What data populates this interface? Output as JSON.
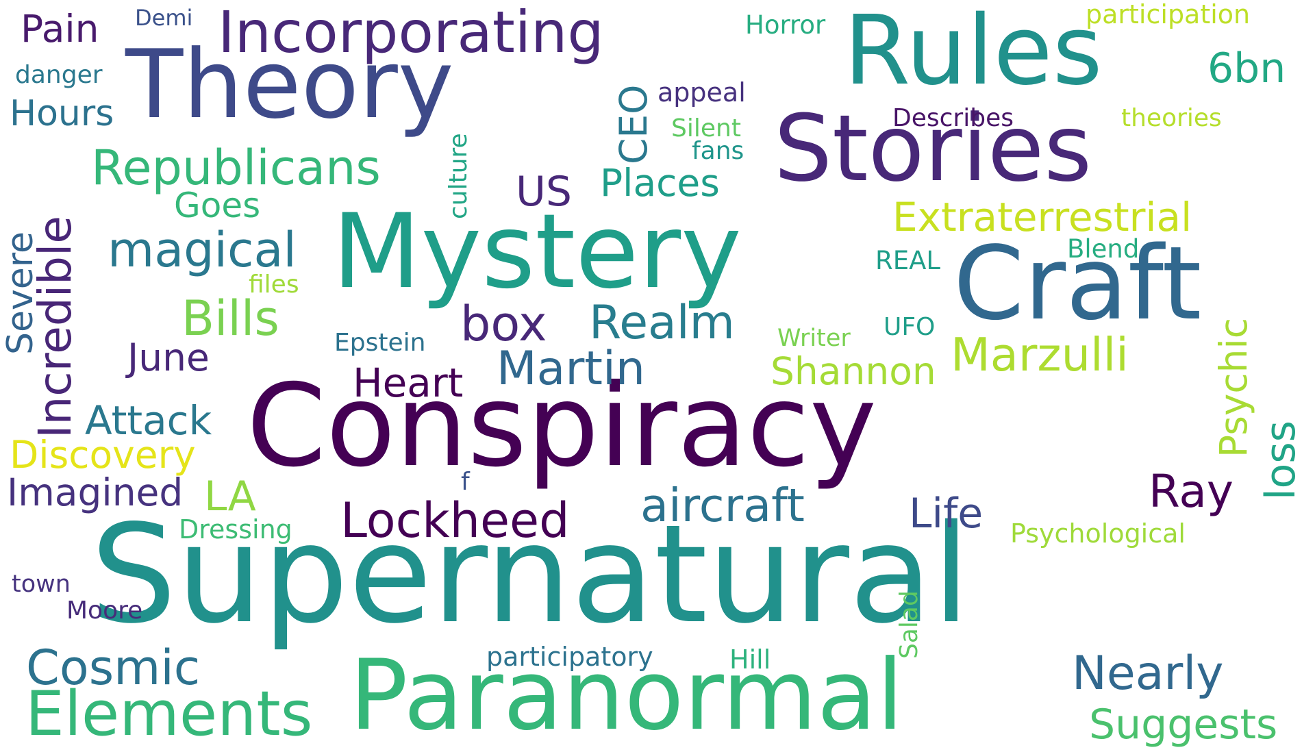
{
  "words": {
    "supernatural": {
      "text": "Supernatural",
      "color": "#21918c"
    },
    "conspiracy": {
      "text": "Conspiracy",
      "color": "#440154"
    },
    "paranormal": {
      "text": "Paranormal",
      "color": "#35b779"
    },
    "mystery": {
      "text": "Mystery",
      "color": "#1f9e89"
    },
    "theory": {
      "text": "Theory",
      "color": "#3e4a89"
    },
    "rules": {
      "text": "Rules",
      "color": "#21918c"
    },
    "stories": {
      "text": "Stories",
      "color": "#482878"
    },
    "craft": {
      "text": "Craft",
      "color": "#31688e"
    },
    "incorporating": {
      "text": "Incorporating",
      "color": "#482878"
    },
    "elements": {
      "text": "Elements",
      "color": "#35b779"
    },
    "republicans": {
      "text": "Republicans",
      "color": "#35b779"
    },
    "extraterrestrial": {
      "text": "Extraterrestrial",
      "color": "#c8e020"
    },
    "marzulli": {
      "text": "Marzulli",
      "color": "#addc30"
    },
    "martin": {
      "text": "Martin",
      "color": "#31688e"
    },
    "cosmic": {
      "text": "Cosmic",
      "color": "#2c728e"
    },
    "lockheed": {
      "text": "Lockheed",
      "color": "#440154"
    },
    "aircraft": {
      "text": "aircraft",
      "color": "#2c728e"
    },
    "nearly": {
      "text": "Nearly",
      "color": "#31688e"
    },
    "suggests": {
      "text": "Suggests",
      "color": "#4ac16d"
    },
    "realm": {
      "text": "Realm",
      "color": "#287d8e"
    },
    "magical": {
      "text": "magical",
      "color": "#2a788e"
    },
    "bills": {
      "text": "Bills",
      "color": "#7ad151"
    },
    "box": {
      "text": "box",
      "color": "#482878"
    },
    "heart": {
      "text": "Heart",
      "color": "#440154"
    },
    "shannon": {
      "text": "Shannon",
      "color": "#a5db36"
    },
    "attack": {
      "text": "Attack",
      "color": "#2a788e"
    },
    "discovery": {
      "text": "Discovery",
      "color": "#e5e419"
    },
    "imagined": {
      "text": "Imagined",
      "color": "#46327e"
    },
    "ray": {
      "text": "Ray",
      "color": "#440154"
    },
    "life": {
      "text": "Life",
      "color": "#3e4a89"
    },
    "june": {
      "text": "June",
      "color": "#482878"
    },
    "la": {
      "text": "LA",
      "color": "#90d743"
    },
    "places": {
      "text": "Places",
      "color": "#1f9e89"
    },
    "us": {
      "text": "US",
      "color": "#482878"
    },
    "goes": {
      "text": "Goes",
      "color": "#35b779"
    },
    "hours": {
      "text": "Hours",
      "color": "#2c728e"
    },
    "pain": {
      "text": "Pain",
      "color": "#481a6c"
    },
    "sixbn": {
      "text": "6bn",
      "color": "#22a884"
    },
    "psychological": {
      "text": "Psychological",
      "color": "#9fda3a"
    },
    "participatory": {
      "text": "participatory",
      "color": "#2c728e"
    },
    "participation": {
      "text": "participation",
      "color": "#bddf26"
    },
    "dressing": {
      "text": "Dressing",
      "color": "#3dbc74"
    },
    "moore": {
      "text": "Moore",
      "color": "#472c7a"
    },
    "town": {
      "text": "town",
      "color": "#46337f"
    },
    "hill": {
      "text": "Hill",
      "color": "#2db27d"
    },
    "demi": {
      "text": "Demi",
      "color": "#3b528b"
    },
    "horror": {
      "text": "Horror",
      "color": "#27ad81"
    },
    "danger": {
      "text": "danger",
      "color": "#2a788e"
    },
    "appeal": {
      "text": "appeal",
      "color": "#46317e"
    },
    "describes": {
      "text": "Describes",
      "color": "#481467"
    },
    "theories": {
      "text": "theories",
      "color": "#b5de2b"
    },
    "silent": {
      "text": "Silent",
      "color": "#5ec962"
    },
    "fans": {
      "text": "fans",
      "color": "#1f958b"
    },
    "real": {
      "text": "REAL",
      "color": "#1f9e89"
    },
    "blend": {
      "text": "Blend",
      "color": "#27ad81"
    },
    "files": {
      "text": "files",
      "color": "#a0da39"
    },
    "epstein": {
      "text": "Epstein",
      "color": "#2c728e"
    },
    "writer": {
      "text": "Writer",
      "color": "#7ad151"
    },
    "ufo": {
      "text": "UFO",
      "color": "#1f9e89"
    },
    "f": {
      "text": "f",
      "color": "#3b528b"
    },
    "incredible": {
      "text": "Incredible",
      "color": "#482677"
    },
    "severe": {
      "text": "Severe",
      "color": "#33638d"
    },
    "culture": {
      "text": "culture",
      "color": "#21a585"
    },
    "ceo": {
      "text": "CEO",
      "color": "#2a788e"
    },
    "psychic": {
      "text": "Psychic",
      "color": "#a8db34"
    },
    "loss": {
      "text": "loss",
      "color": "#20a486"
    },
    "salad": {
      "text": "Salad",
      "color": "#5ec962"
    }
  }
}
